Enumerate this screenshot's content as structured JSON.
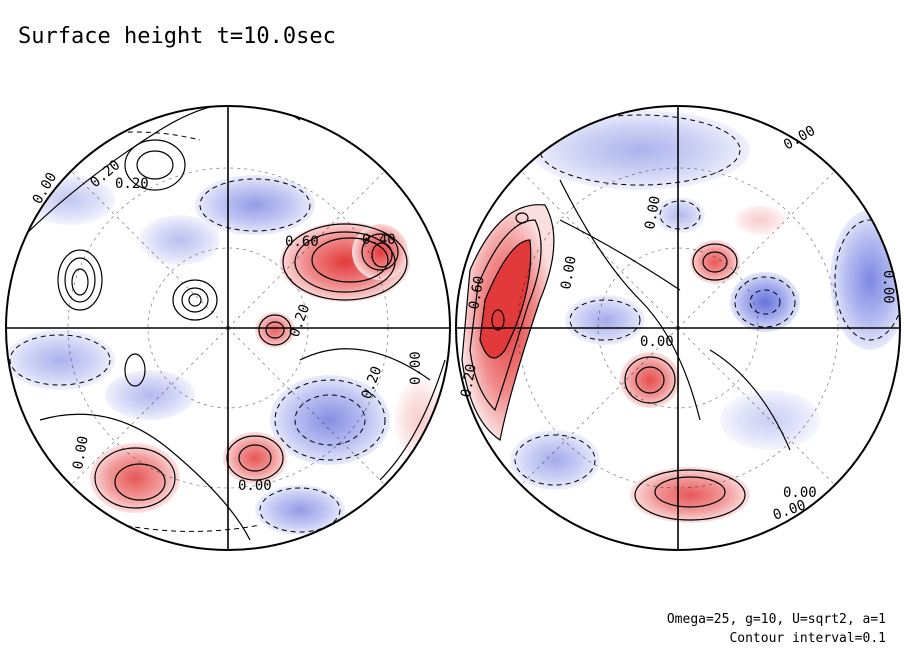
{
  "title": "Surface height t=10.0sec",
  "params_line": "Omega=25, g=10, U=sqrt2, a=1",
  "contour_line": "Contour interval=0.1",
  "colors": {
    "positive": "#e24a4a",
    "negative": "#5a6ad8",
    "contour": "#000000",
    "background": "#ffffff"
  },
  "contour_labels": {
    "left": [
      "0.20",
      "0.00",
      "0.20",
      "0.60",
      "0.40",
      "0.20",
      "0.20",
      "0.00",
      "0.00",
      "0.00"
    ],
    "right": [
      "0.00",
      "0.00",
      "0.00",
      "0.60",
      "0.20",
      "0.00",
      "0.00",
      "0.00",
      "0.00"
    ]
  }
}
